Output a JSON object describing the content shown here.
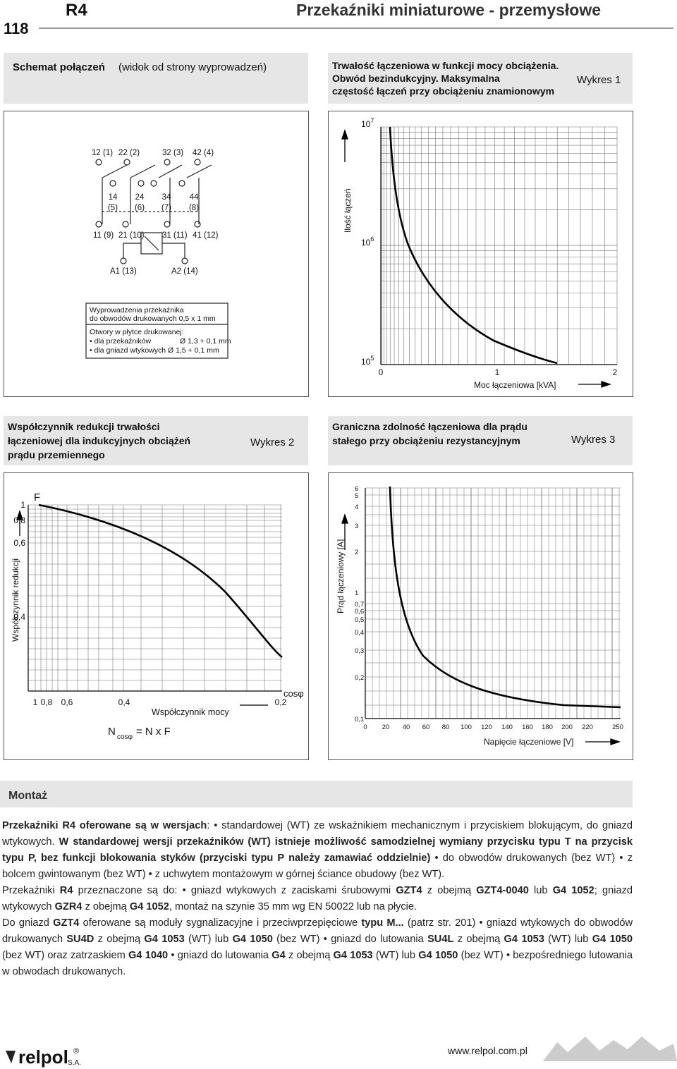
{
  "header": {
    "page": "118",
    "code": "R4",
    "title": "Przekaźniki miniaturowe - przemysłowe"
  },
  "schema": {
    "title_bold": "Schemat połączeń",
    "title_rest": "(widok od strony wyprowadzeń)",
    "pins_top": [
      "12 (1)",
      "22 (2)",
      "32 (3)",
      "42 (4)"
    ],
    "pins_mid": [
      [
        "14",
        "(5)"
      ],
      [
        "24",
        "(6)"
      ],
      [
        "34",
        "(7)"
      ],
      [
        "44",
        "(8)"
      ]
    ],
    "pins_bottom": [
      "11 (9)",
      "21 (10)",
      "31 (11)",
      "41 (12)"
    ],
    "coil": [
      "A1 (13)",
      "A2 (14)"
    ],
    "note1": [
      "Wyprowadzenia przekaźnika",
      "do obwodów drukowanych 0,5 x 1 mm"
    ],
    "note2": [
      "Otwory w płytce drukowanej:",
      "• dla przekaźników",
      "Ø 1,3 + 0,1 mm",
      "• dla gniazd wtykowych Ø 1,5 + 0,1 mm"
    ]
  },
  "chart1": {
    "title": [
      "Trwałość łączeniowa w funkcji mocy obciążenia.",
      "Obwód bezindukcyjny. Maksymalna",
      "częstość łączeń przy obciążeniu znamionowym"
    ],
    "tag": "Wykres 1",
    "yticks": [
      {
        "base": "10",
        "exp": "7"
      },
      {
        "base": "10",
        "exp": "6"
      },
      {
        "base": "10",
        "exp": "5"
      }
    ],
    "xticks": [
      "0",
      "1",
      "2"
    ],
    "xlabel": "Moc łączeniowa [kVA]",
    "ylabel": "Ilość łączeń"
  },
  "chart2": {
    "title": [
      "Współczynnik redukcji trwałości",
      "łączeniowej dla indukcyjnych obciążeń",
      "prądu przemiennego"
    ],
    "tag": "Wykres 2",
    "ysymbol": "F",
    "yticks": [
      "1",
      "0,8",
      "0,6",
      "0,4"
    ],
    "ylabel": "Współczynnik redukcji",
    "xticks": [
      "1",
      "0,8",
      "0,6",
      "0,4",
      "0,2"
    ],
    "xsymbol": "cosφ",
    "xlabel": "Współczynnik mocy",
    "formula": {
      "n": "N",
      "sub": "cosφ",
      "rest": "= N x F"
    }
  },
  "chart3": {
    "title": [
      "Graniczna zdolność łączeniowa dla prądu",
      "stałego przy obciążeniu rezystancyjnym"
    ],
    "tag": "Wykres 3",
    "yticks": [
      "6",
      "5",
      "4",
      "3",
      "2",
      "1",
      "0,7",
      "0,6",
      "0,5",
      "0,4",
      "0,3",
      "0,2",
      "0,1"
    ],
    "ylabel": "Prąd łączeniowy [A]",
    "xticks": [
      "0",
      "20",
      "40",
      "60",
      "80",
      "100",
      "120",
      "140",
      "160",
      "180",
      "200",
      "220",
      "250"
    ],
    "xlabel": "Napięcie łączeniowe [V]"
  },
  "montaz": {
    "heading": "Montaż",
    "paragraphs": [
      [
        {
          "t": "Przekaźniki R4 oferowane są w wersjach",
          "b": true
        },
        {
          "t": ": • standardowej (WT) ze wskaźnikiem mechanicznym i przyciskiem blokującym, do gniazd wtykowych. "
        },
        {
          "t": "W standardowej wersji przekaźników (WT) istnieje możliwość samodzielnej wymiany przycisku typu T na przycisk typu P, bez funkcji blokowania styków (przyciski typu P należy zamawiać oddzielnie)",
          "b": true
        },
        {
          "t": " • do obwodów drukowanych (bez WT) • z bolcem gwintowanym (bez WT) • z uchwytem montażowym w górnej ściance obudowy (bez WT)."
        }
      ],
      [
        {
          "t": "Przekaźniki "
        },
        {
          "t": "R4",
          "b": true
        },
        {
          "t": " przeznaczone są do: • gniazd wtykowych z zaciskami śrubowymi "
        },
        {
          "t": "GZT4",
          "b": true
        },
        {
          "t": " z obejmą "
        },
        {
          "t": "GZT4-0040",
          "b": true
        },
        {
          "t": " lub "
        },
        {
          "t": "G4 1052",
          "b": true
        },
        {
          "t": "; gniazd wtykowych "
        },
        {
          "t": "GZR4",
          "b": true
        },
        {
          "t": " z obejmą "
        },
        {
          "t": "G4 1052",
          "b": true
        },
        {
          "t": ", montaż na szynie 35 mm wg EN 50022 lub na płycie."
        }
      ],
      [
        {
          "t": " Do gniazd "
        },
        {
          "t": "GZT4",
          "b": true
        },
        {
          "t": " oferowane są moduły sygnalizacyjne i przeciwprzepięciowe "
        },
        {
          "t": "typu M...",
          "b": true
        },
        {
          "t": " (patrz str. 201) • gniazd wtykowych do obwodów drukowanych "
        },
        {
          "t": "SU4D",
          "b": true
        },
        {
          "t": " z obejmą "
        },
        {
          "t": "G4 1053",
          "b": true
        },
        {
          "t": " (WT) lub "
        },
        {
          "t": "G4 1050",
          "b": true
        },
        {
          "t": " (bez WT) • gniazd do lutowania "
        },
        {
          "t": "SU4L",
          "b": true
        },
        {
          "t": " z obejmą "
        },
        {
          "t": "G4 1053",
          "b": true
        },
        {
          "t": " (WT) lub "
        },
        {
          "t": "G4 1050",
          "b": true
        },
        {
          "t": " (bez WT) oraz zatrzaskiem "
        },
        {
          "t": "G4 1040",
          "b": true
        },
        {
          "t": " • gniazd do lutowania "
        },
        {
          "t": "G4",
          "b": true
        },
        {
          "t": " z obejmą "
        },
        {
          "t": "G4 1053",
          "b": true
        },
        {
          "t": " (WT) lub "
        },
        {
          "t": "G4 1050",
          "b": true
        },
        {
          "t": " (bez WT) • bezpośredniego lutowania w obwodach drukowanych."
        }
      ]
    ]
  },
  "footer": {
    "brand": "relpol",
    "suffix": "S.A.",
    "reg": "®",
    "url": "www.relpol.com.pl"
  }
}
